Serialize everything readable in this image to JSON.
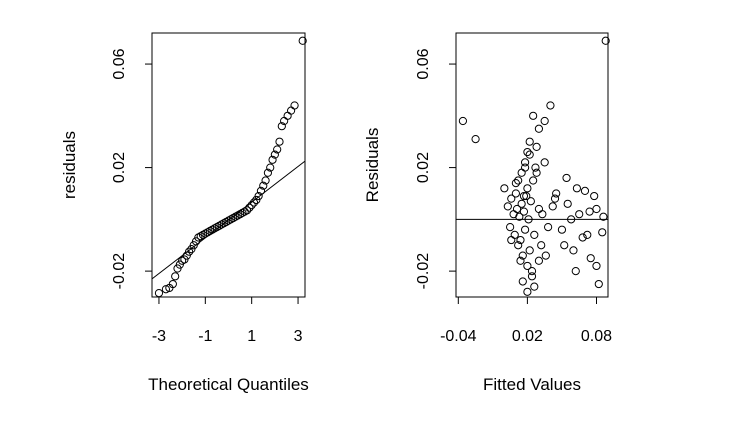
{
  "chart_data": [
    {
      "type": "scatter",
      "subtype": "qq-plot",
      "xlabel": "Theoretical Quantiles",
      "ylabel": "residuals",
      "xlim": [
        -3.3,
        3.3
      ],
      "ylim": [
        -0.03,
        0.072
      ],
      "x_ticks": [
        -3,
        -1,
        1,
        3
      ],
      "x_tick_labels": [
        "-3",
        "-1",
        "1",
        "3"
      ],
      "y_ticks": [
        -0.02,
        0.02,
        0.06
      ],
      "y_tick_labels": [
        "-0.02",
        "0.02",
        "0.06"
      ],
      "reference_line": {
        "x": [
          -3.3,
          3.3
        ],
        "y": [
          -0.023,
          0.0225
        ]
      },
      "points_x": [
        -3.0,
        -2.7,
        -2.55,
        -2.4,
        -2.3,
        -2.2,
        -2.1,
        -2.0,
        -1.9,
        -1.8,
        -1.7,
        -1.6,
        -1.5,
        -1.4,
        -1.3,
        -1.2,
        -1.1,
        -1.0,
        -0.9,
        -0.8,
        -0.7,
        -0.6,
        -0.5,
        -0.4,
        -0.3,
        -0.2,
        -0.1,
        0.0,
        0.1,
        0.2,
        0.3,
        0.4,
        0.5,
        0.6,
        0.7,
        0.8,
        0.9,
        1.0,
        1.1,
        1.2,
        1.3,
        1.4,
        1.5,
        1.6,
        1.7,
        1.8,
        1.9,
        2.0,
        2.1,
        2.2,
        2.3,
        2.4,
        2.55,
        2.7,
        2.85,
        3.2
      ],
      "points_y": [
        -0.0285,
        -0.027,
        -0.0265,
        -0.025,
        -0.022,
        -0.019,
        -0.0175,
        -0.016,
        -0.0155,
        -0.014,
        -0.0125,
        -0.0115,
        -0.01,
        -0.0085,
        -0.007,
        -0.0065,
        -0.006,
        -0.0055,
        -0.005,
        -0.0045,
        -0.004,
        -0.0035,
        -0.003,
        -0.0025,
        -0.002,
        -0.0015,
        -0.001,
        -0.0005,
        0.0,
        0.0005,
        0.001,
        0.0015,
        0.002,
        0.0025,
        0.003,
        0.0035,
        0.0045,
        0.0055,
        0.0065,
        0.0075,
        0.009,
        0.011,
        0.013,
        0.015,
        0.018,
        0.02,
        0.023,
        0.025,
        0.027,
        0.03,
        0.036,
        0.038,
        0.04,
        0.042,
        0.044,
        0.069
      ]
    },
    {
      "type": "scatter",
      "subtype": "residuals-vs-fitted",
      "xlabel": "Fitted Values",
      "ylabel": "Residuals",
      "xlim": [
        -0.042,
        0.09
      ],
      "ylim": [
        -0.03,
        0.072
      ],
      "x_ticks": [
        -0.04,
        0.02,
        0.08
      ],
      "x_tick_labels": [
        "-0.04",
        "0.02",
        "0.08"
      ],
      "y_ticks": [
        -0.02,
        0.02,
        0.06
      ],
      "y_tick_labels": [
        "-0.02",
        "0.02",
        "0.06"
      ],
      "reference_line": {
        "y": 0.0
      },
      "points_x": [
        -0.036,
        -0.025,
        0.0,
        0.003,
        0.005,
        0.006,
        0.008,
        0.009,
        0.01,
        0.011,
        0.012,
        0.012,
        0.013,
        0.014,
        0.015,
        0.015,
        0.016,
        0.017,
        0.018,
        0.018,
        0.019,
        0.02,
        0.02,
        0.021,
        0.022,
        0.022,
        0.023,
        0.024,
        0.025,
        0.026,
        0.027,
        0.028,
        0.03,
        0.032,
        0.035,
        0.04,
        0.045,
        0.05,
        0.055,
        0.06,
        0.065,
        0.07,
        0.075,
        0.08,
        0.085,
        0.006,
        0.01,
        0.014,
        0.017,
        0.02,
        0.024,
        0.028,
        0.033,
        0.038,
        0.044,
        0.052,
        0.058,
        0.063,
        0.068,
        0.074,
        0.08,
        0.086,
        0.016,
        0.022,
        0.026,
        0.03,
        0.036,
        0.042,
        0.054,
        0.062,
        0.072,
        0.078,
        0.082,
        0.018,
        0.02,
        0.025,
        0.03,
        0.035,
        0.088
      ],
      "points_y": [
        0.038,
        0.031,
        0.012,
        0.005,
        -0.003,
        0.008,
        0.002,
        -0.006,
        0.01,
        0.004,
        -0.01,
        0.015,
        0.001,
        -0.008,
        0.018,
        0.006,
        -0.014,
        0.003,
        0.022,
        -0.004,
        0.009,
        -0.018,
        0.012,
        0.0,
        -0.012,
        0.025,
        0.007,
        -0.02,
        0.015,
        -0.006,
        0.02,
        0.028,
        0.004,
        -0.01,
        0.038,
        0.044,
        0.01,
        -0.004,
        0.006,
        -0.012,
        0.002,
        0.011,
        -0.015,
        0.004,
        -0.005,
        -0.008,
        0.014,
        -0.016,
        0.009,
        0.026,
        -0.022,
        0.018,
        0.002,
        -0.003,
        0.008,
        -0.01,
        0.0,
        0.012,
        -0.007,
        0.003,
        -0.018,
        0.001,
        -0.024,
        0.03,
        -0.026,
        0.035,
        -0.014,
        0.005,
        0.016,
        -0.02,
        -0.006,
        0.009,
        -0.025,
        0.02,
        -0.028,
        0.04,
        -0.016,
        0.022,
        0.069
      ]
    }
  ]
}
